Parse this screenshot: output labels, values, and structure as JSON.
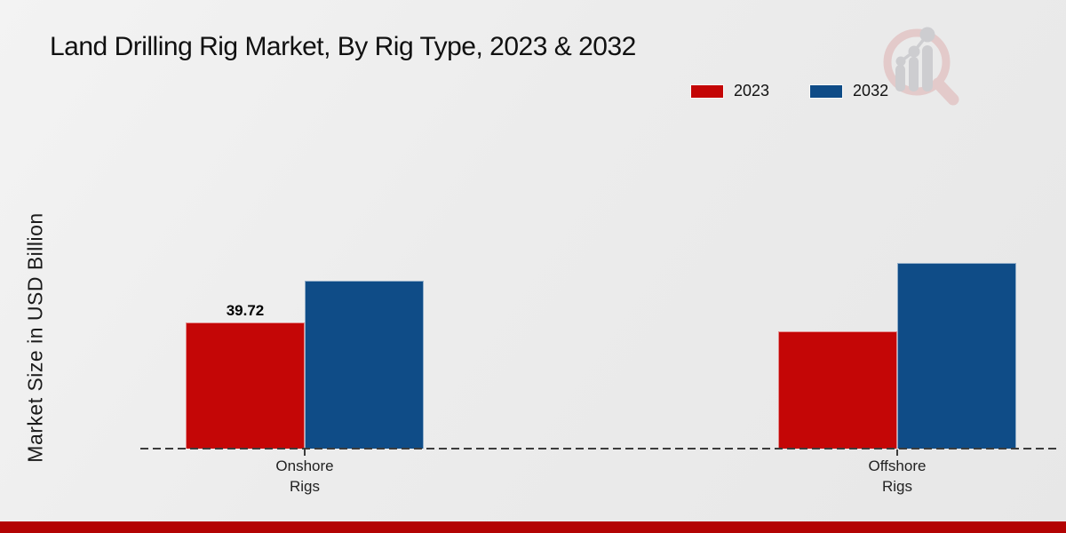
{
  "header": {
    "title": "Land Drilling Rig Market, By Rig Type, 2023 & 2032"
  },
  "chart_data": {
    "type": "bar",
    "title": "Land Drilling Rig Market, By Rig Type, 2023 & 2032",
    "xlabel": "",
    "ylabel": "Market Size in USD Billion",
    "ylim": [
      0,
      99
    ],
    "grid": false,
    "legend_position": "top-right",
    "categories": [
      {
        "line1": "Onshore",
        "line2": "Rigs"
      },
      {
        "line1": "Offshore",
        "line2": "Rigs"
      }
    ],
    "series": [
      {
        "name": "2023",
        "color": "#c40606",
        "values": [
          39.72,
          36.9
        ],
        "labels": [
          "39.72",
          ""
        ]
      },
      {
        "name": "2032",
        "color": "#0f4c87",
        "values": [
          52.6,
          58.2
        ],
        "labels": [
          "",
          ""
        ]
      }
    ]
  },
  "branding": {
    "logo_icon": "magnifier-bar-chart-logo",
    "footer_bar_color": "#b30303",
    "logo_pink": "#e2c5c5",
    "logo_gray": "#c8c8cc"
  }
}
